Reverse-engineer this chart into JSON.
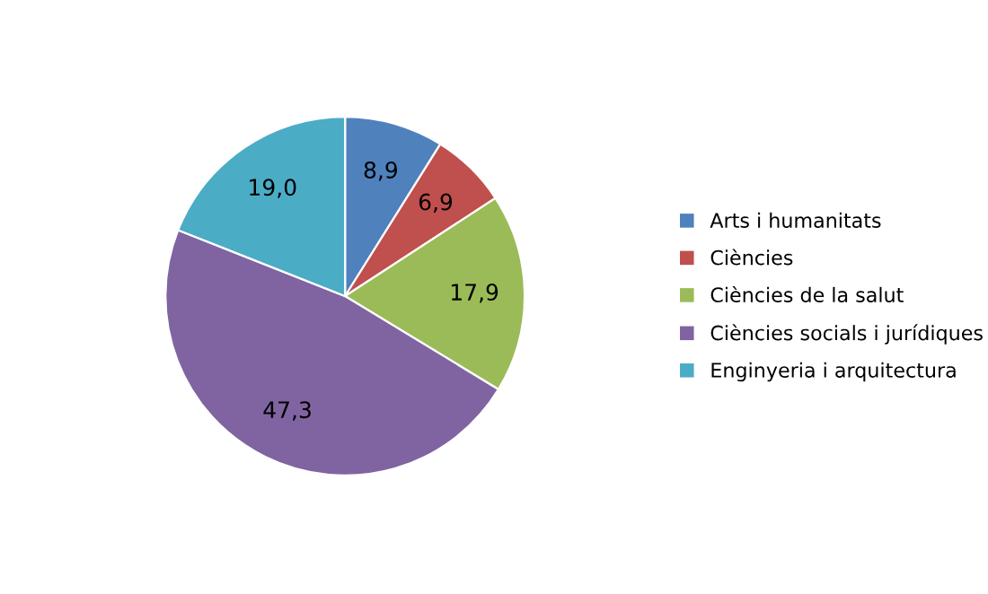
{
  "chart_data": {
    "type": "pie",
    "categories": [
      "Arts i humanitats",
      "Ciències",
      "Ciències de la salut",
      "Ciències socials i jurídiques",
      "Enginyeria i arquitectura"
    ],
    "values": [
      8.9,
      6.9,
      17.9,
      47.3,
      19.0
    ],
    "value_labels": [
      "8,9",
      "6,9",
      "17,9",
      "47,3",
      "19,0"
    ],
    "colors": [
      "#4f81bd",
      "#c0504d",
      "#9bbb59",
      "#8064a2",
      "#4bacc6"
    ],
    "legend": "right"
  }
}
